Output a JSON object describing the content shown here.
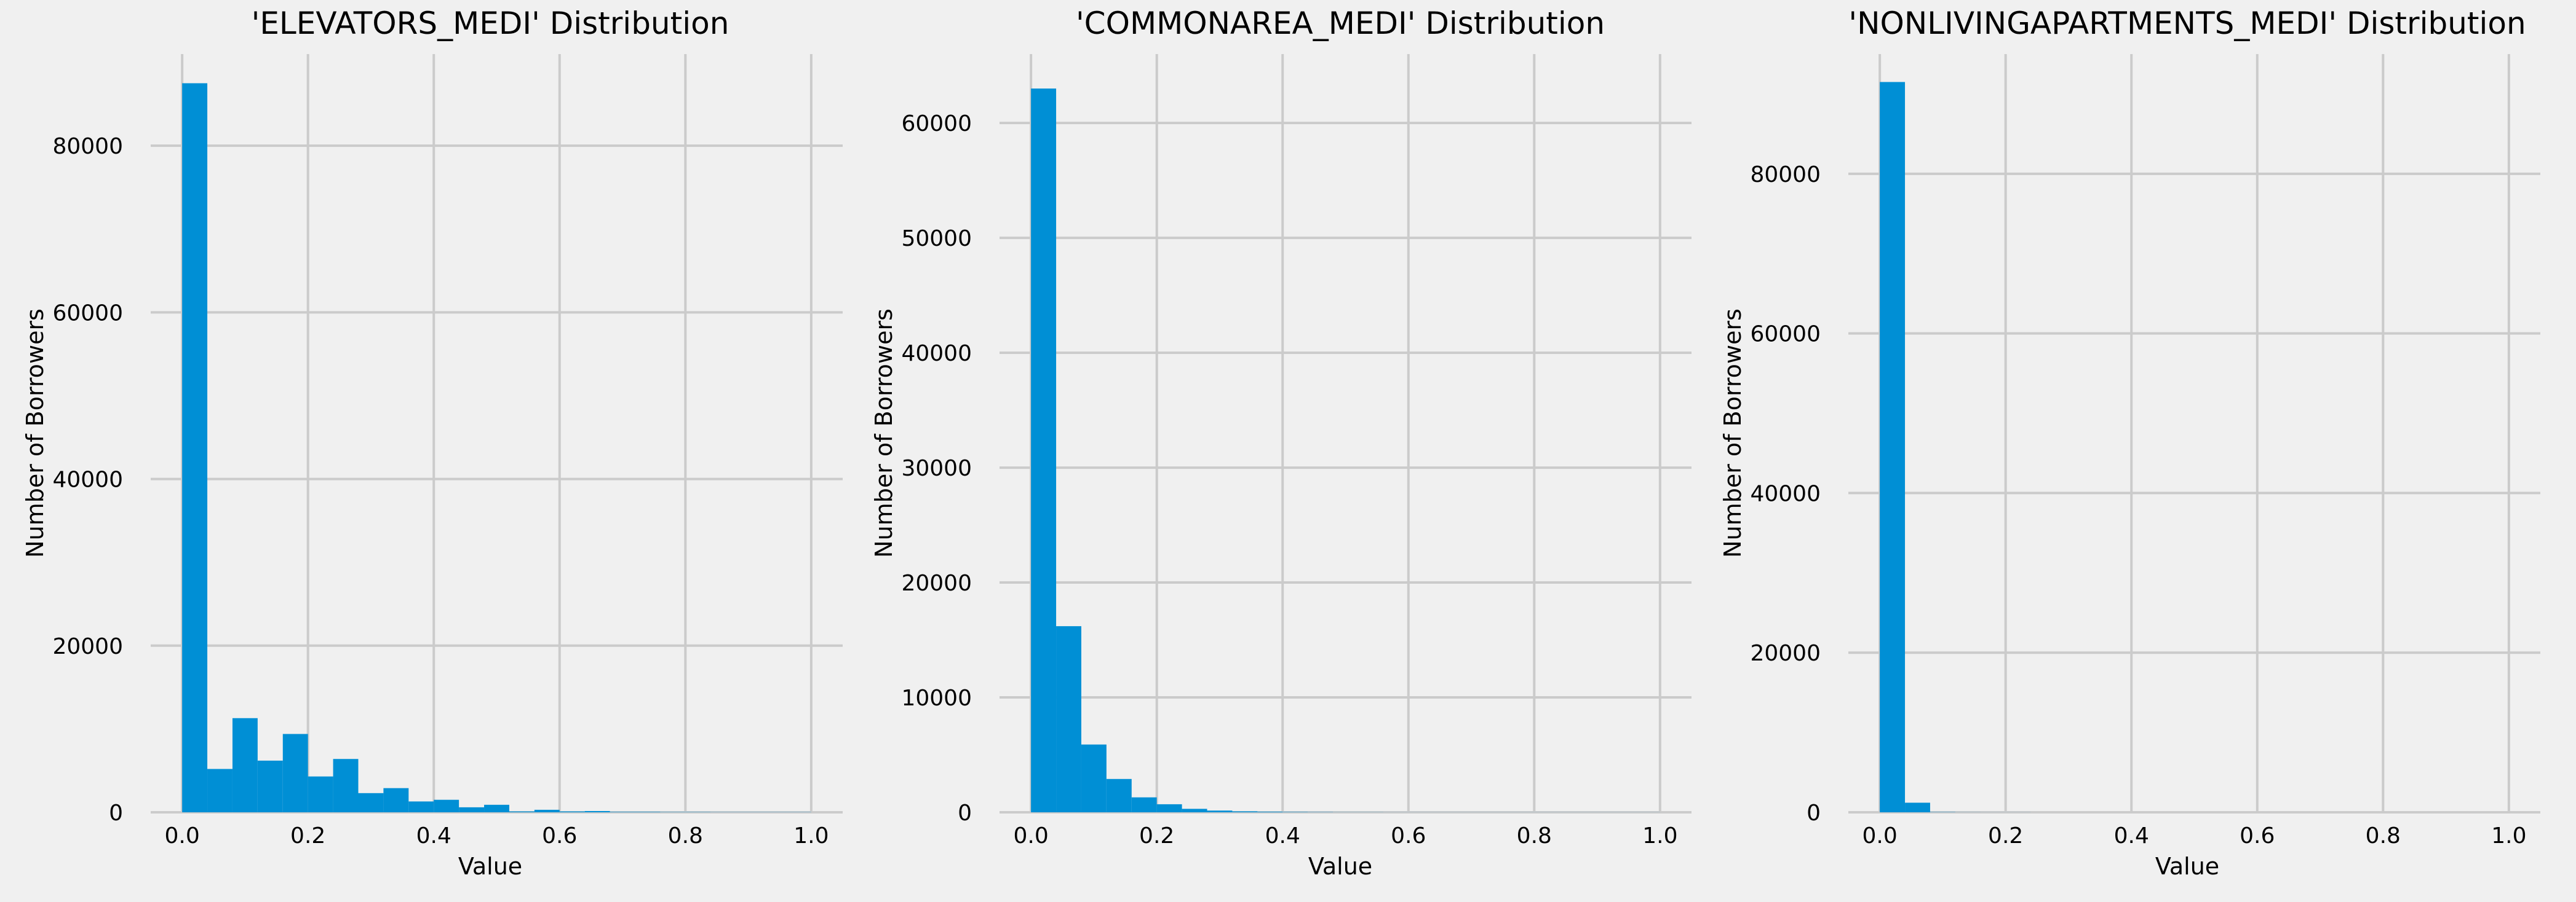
{
  "colors": {
    "background": "#f0f0f0",
    "bar": "#008fd5",
    "grid": "#cbcbcb",
    "text": "#000000"
  },
  "chart_data": [
    {
      "type": "bar",
      "title": "'ELEVATORS_MEDI' Distribution",
      "xlabel": "Value",
      "ylabel": "Number of Borrowers",
      "grid": true,
      "xlim": [
        -0.05,
        1.05
      ],
      "ylim": [
        0,
        91000
      ],
      "xticks": [
        0.0,
        0.2,
        0.4,
        0.6,
        0.8,
        1.0
      ],
      "xtick_labels": [
        "0.0",
        "0.2",
        "0.4",
        "0.6",
        "0.8",
        "1.0"
      ],
      "yticks": [
        0,
        20000,
        40000,
        60000,
        80000
      ],
      "ytick_labels": [
        "0",
        "20000",
        "40000",
        "60000",
        "80000"
      ],
      "bin_edges": [
        0.0,
        0.04,
        0.08,
        0.12,
        0.16,
        0.2,
        0.24,
        0.28,
        0.32,
        0.36,
        0.4,
        0.44,
        0.48,
        0.52,
        0.56,
        0.6,
        0.64,
        0.68,
        0.72,
        0.76,
        0.8,
        0.84,
        0.88,
        0.92,
        0.96,
        1.0
      ],
      "values": [
        87500,
        5200,
        11300,
        6200,
        9400,
        4300,
        6400,
        2300,
        2900,
        1300,
        1500,
        600,
        900,
        100,
        300,
        100,
        150,
        50,
        50,
        30,
        30,
        20,
        20,
        20,
        20
      ]
    },
    {
      "type": "bar",
      "title": "'COMMONAREA_MEDI' Distribution",
      "xlabel": "Value",
      "ylabel": "Number of Borrowers",
      "grid": true,
      "xlim": [
        -0.05,
        1.05
      ],
      "ylim": [
        0,
        66000
      ],
      "xticks": [
        0.0,
        0.2,
        0.4,
        0.6,
        0.8,
        1.0
      ],
      "xtick_labels": [
        "0.0",
        "0.2",
        "0.4",
        "0.6",
        "0.8",
        "1.0"
      ],
      "yticks": [
        0,
        10000,
        20000,
        30000,
        40000,
        50000,
        60000
      ],
      "ytick_labels": [
        "0",
        "10000",
        "20000",
        "30000",
        "40000",
        "50000",
        "60000"
      ],
      "bin_edges": [
        0.0,
        0.04,
        0.08,
        0.12,
        0.16,
        0.2,
        0.24,
        0.28,
        0.32,
        0.36,
        0.4,
        0.44,
        0.48,
        0.52,
        0.56,
        0.6,
        0.64,
        0.68,
        0.72,
        0.76,
        0.8,
        0.84,
        0.88,
        0.92,
        0.96,
        1.0
      ],
      "values": [
        63000,
        16200,
        5900,
        2900,
        1300,
        700,
        300,
        150,
        80,
        50,
        30,
        20,
        10,
        10,
        5,
        5,
        5,
        5,
        5,
        5,
        5,
        5,
        5,
        5,
        5
      ]
    },
    {
      "type": "bar",
      "title": "'NONLIVINGAPARTMENTS_MEDI' Distribution",
      "xlabel": "Value",
      "ylabel": "Number of Borrowers",
      "grid": true,
      "xlim": [
        -0.05,
        1.05
      ],
      "ylim": [
        0,
        95000
      ],
      "xticks": [
        0.0,
        0.2,
        0.4,
        0.6,
        0.8,
        1.0
      ],
      "xtick_labels": [
        "0.0",
        "0.2",
        "0.4",
        "0.6",
        "0.8",
        "1.0"
      ],
      "yticks": [
        0,
        20000,
        40000,
        60000,
        80000
      ],
      "ytick_labels": [
        "0",
        "20000",
        "40000",
        "60000",
        "80000"
      ],
      "bin_edges": [
        0.0,
        0.04,
        0.08,
        0.12,
        0.16,
        0.2,
        0.24,
        0.28,
        0.32,
        0.36,
        0.4,
        0.44,
        0.48,
        0.52,
        0.56,
        0.6,
        0.64,
        0.68,
        0.72,
        0.76,
        0.8,
        0.84,
        0.88,
        0.92,
        0.96,
        1.0
      ],
      "values": [
        91500,
        1200,
        30,
        10,
        5,
        5,
        0,
        0,
        0,
        0,
        0,
        0,
        0,
        0,
        0,
        0,
        0,
        0,
        0,
        0,
        0,
        0,
        0,
        0,
        0
      ]
    }
  ]
}
